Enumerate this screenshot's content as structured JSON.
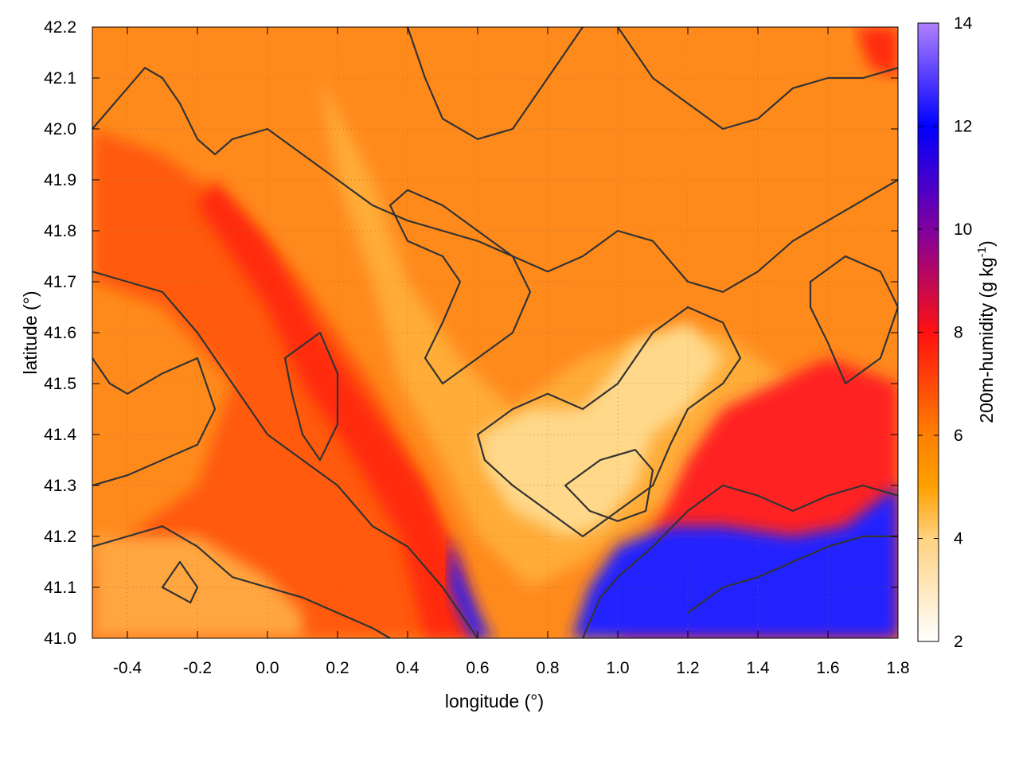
{
  "chart_data": {
    "type": "heatmap",
    "title": "",
    "xlabel": "longitude (°)",
    "ylabel": "latitude (°)",
    "xlim": [
      -0.5,
      1.8
    ],
    "ylim": [
      41.0,
      42.2
    ],
    "xticks": [
      -0.4,
      -0.2,
      0.0,
      0.2,
      0.4,
      0.6,
      0.8,
      1.0,
      1.2,
      1.4,
      1.6,
      1.8
    ],
    "xtick_labels": [
      "-0.4",
      "-0.2",
      "0.0",
      "0.2",
      "0.4",
      "0.6",
      "0.8",
      "1.0",
      "1.2",
      "1.4",
      "1.6",
      "1.8"
    ],
    "yticks": [
      41.0,
      41.1,
      41.2,
      41.3,
      41.4,
      41.5,
      41.6,
      41.7,
      41.8,
      41.9,
      42.0,
      42.1,
      42.2
    ],
    "ytick_labels": [
      "41.0",
      "41.1",
      "41.2",
      "41.3",
      "41.4",
      "41.5",
      "41.6",
      "41.7",
      "41.8",
      "41.9",
      "42.0",
      "42.1",
      "42.2"
    ],
    "grid": true,
    "colorbar": {
      "label_main": "200m-humidity (g kg",
      "label_sup": "-1",
      "label_end": ")",
      "range": [
        2,
        14
      ],
      "ticks": [
        2,
        4,
        6,
        8,
        10,
        12,
        14
      ],
      "tick_labels": [
        "2",
        "4",
        "6",
        "8",
        "10",
        "12",
        "14"
      ],
      "stops": [
        {
          "value": 2,
          "color": "#ffffff"
        },
        {
          "value": 4,
          "color": "#ffd280"
        },
        {
          "value": 5,
          "color": "#ffa000"
        },
        {
          "value": 6,
          "color": "#ff8000"
        },
        {
          "value": 8,
          "color": "#ff1010"
        },
        {
          "value": 10,
          "color": "#8000a0"
        },
        {
          "value": 12,
          "color": "#0000ff"
        },
        {
          "value": 14,
          "color": "#b080ff"
        }
      ]
    },
    "humidity_regions": [
      {
        "level": 6.3,
        "color": "#ff8a1c",
        "poly": [
          [
            -0.5,
            42.2
          ],
          [
            1.8,
            42.2
          ],
          [
            1.8,
            41.0
          ],
          [
            -0.5,
            41.0
          ]
        ]
      },
      {
        "level": 7.0,
        "color": "#ff5a0a",
        "poly": [
          [
            -0.5,
            42.0
          ],
          [
            -0.3,
            41.95
          ],
          [
            -0.1,
            41.85
          ],
          [
            0.1,
            41.7
          ],
          [
            0.3,
            41.5
          ],
          [
            0.45,
            41.3
          ],
          [
            0.55,
            41.1
          ],
          [
            0.6,
            41.0
          ],
          [
            -0.5,
            41.0
          ],
          [
            -0.5,
            41.15
          ],
          [
            -0.2,
            41.3
          ],
          [
            -0.1,
            41.5
          ],
          [
            -0.3,
            41.65
          ],
          [
            -0.5,
            41.7
          ]
        ]
      },
      {
        "level": 5.5,
        "color": "#ffa640",
        "poly": [
          [
            -0.5,
            41.2
          ],
          [
            -0.2,
            41.2
          ],
          [
            0.0,
            41.12
          ],
          [
            0.1,
            41.05
          ],
          [
            0.1,
            41.0
          ],
          [
            -0.5,
            41.0
          ]
        ]
      },
      {
        "level": 7.8,
        "color": "#ff2a08",
        "poly": [
          [
            -0.15,
            41.9
          ],
          [
            0.0,
            41.78
          ],
          [
            0.15,
            41.6
          ],
          [
            0.3,
            41.45
          ],
          [
            0.45,
            41.3
          ],
          [
            0.55,
            41.15
          ],
          [
            0.6,
            41.0
          ],
          [
            0.45,
            41.0
          ],
          [
            0.38,
            41.2
          ],
          [
            0.25,
            41.35
          ],
          [
            0.1,
            41.5
          ],
          [
            0.0,
            41.65
          ],
          [
            -0.1,
            41.75
          ],
          [
            -0.2,
            41.85
          ]
        ]
      },
      {
        "level": 5.2,
        "color": "#ffac38",
        "poly": [
          [
            0.15,
            42.1
          ],
          [
            0.3,
            41.9
          ],
          [
            0.4,
            41.7
          ],
          [
            0.55,
            41.55
          ],
          [
            0.7,
            41.45
          ],
          [
            0.8,
            41.5
          ],
          [
            0.9,
            41.55
          ],
          [
            1.1,
            41.6
          ],
          [
            1.3,
            41.6
          ],
          [
            1.5,
            41.5
          ],
          [
            1.6,
            41.45
          ],
          [
            1.5,
            41.35
          ],
          [
            1.3,
            41.3
          ],
          [
            1.1,
            41.25
          ],
          [
            0.9,
            41.15
          ],
          [
            0.75,
            41.1
          ],
          [
            0.6,
            41.2
          ],
          [
            0.5,
            41.35
          ],
          [
            0.38,
            41.5
          ],
          [
            0.3,
            41.7
          ],
          [
            0.2,
            41.9
          ]
        ]
      },
      {
        "level": 3.5,
        "color": "#ffd88a",
        "poly": [
          [
            0.6,
            41.4
          ],
          [
            0.75,
            41.45
          ],
          [
            0.9,
            41.45
          ],
          [
            1.05,
            41.58
          ],
          [
            1.2,
            41.62
          ],
          [
            1.3,
            41.55
          ],
          [
            1.2,
            41.45
          ],
          [
            1.1,
            41.4
          ],
          [
            1.05,
            41.3
          ],
          [
            0.95,
            41.22
          ],
          [
            0.85,
            41.2
          ],
          [
            0.7,
            41.25
          ],
          [
            0.62,
            41.33
          ]
        ]
      },
      {
        "level": 8.0,
        "color": "#ff2020",
        "poly": [
          [
            1.0,
            41.0
          ],
          [
            1.1,
            41.2
          ],
          [
            1.2,
            41.35
          ],
          [
            1.3,
            41.45
          ],
          [
            1.45,
            41.5
          ],
          [
            1.6,
            41.55
          ],
          [
            1.8,
            41.5
          ],
          [
            1.8,
            41.0
          ]
        ]
      },
      {
        "level": 12.0,
        "color": "#2020ff",
        "poly": [
          [
            0.87,
            41.0
          ],
          [
            0.92,
            41.1
          ],
          [
            1.0,
            41.18
          ],
          [
            1.15,
            41.22
          ],
          [
            1.3,
            41.22
          ],
          [
            1.5,
            41.2
          ],
          [
            1.65,
            41.22
          ],
          [
            1.8,
            41.3
          ],
          [
            1.8,
            41.0
          ]
        ]
      },
      {
        "level": 12.0,
        "color": "#2020ff",
        "poly": [
          [
            0.52,
            41.2
          ],
          [
            0.57,
            41.1
          ],
          [
            0.62,
            41.02
          ],
          [
            0.65,
            41.0
          ],
          [
            0.58,
            41.0
          ],
          [
            0.52,
            41.1
          ]
        ]
      },
      {
        "level": 8.0,
        "color": "#ff2a10",
        "poly": [
          [
            1.68,
            42.2
          ],
          [
            1.8,
            42.2
          ],
          [
            1.8,
            42.1
          ],
          [
            1.72,
            42.12
          ]
        ]
      }
    ],
    "contours": [
      [
        [
          -0.5,
          42.0
        ],
        [
          -0.4,
          42.08
        ],
        [
          -0.35,
          42.12
        ],
        [
          -0.3,
          42.1
        ],
        [
          -0.25,
          42.05
        ],
        [
          -0.2,
          41.98
        ],
        [
          -0.15,
          41.95
        ],
        [
          -0.1,
          41.98
        ],
        [
          0.0,
          42.0
        ],
        [
          0.1,
          41.95
        ],
        [
          0.2,
          41.9
        ],
        [
          0.3,
          41.85
        ],
        [
          0.4,
          41.82
        ],
        [
          0.5,
          41.8
        ],
        [
          0.6,
          41.78
        ],
        [
          0.7,
          41.75
        ],
        [
          0.8,
          41.72
        ],
        [
          0.9,
          41.75
        ],
        [
          1.0,
          41.8
        ],
        [
          1.1,
          41.78
        ],
        [
          1.2,
          41.7
        ],
        [
          1.3,
          41.68
        ],
        [
          1.4,
          41.72
        ],
        [
          1.5,
          41.78
        ],
        [
          1.6,
          41.82
        ],
        [
          1.7,
          41.86
        ],
        [
          1.8,
          41.9
        ]
      ],
      [
        [
          -0.5,
          41.72
        ],
        [
          -0.4,
          41.7
        ],
        [
          -0.3,
          41.68
        ],
        [
          -0.2,
          41.6
        ],
        [
          -0.1,
          41.5
        ],
        [
          0.0,
          41.4
        ],
        [
          0.1,
          41.35
        ],
        [
          0.2,
          41.3
        ],
        [
          0.3,
          41.22
        ],
        [
          0.4,
          41.18
        ],
        [
          0.5,
          41.1
        ],
        [
          0.55,
          41.05
        ],
        [
          0.6,
          41.0
        ]
      ],
      [
        [
          -0.5,
          41.55
        ],
        [
          -0.45,
          41.5
        ],
        [
          -0.4,
          41.48
        ],
        [
          -0.3,
          41.52
        ],
        [
          -0.2,
          41.55
        ],
        [
          -0.15,
          41.45
        ],
        [
          -0.2,
          41.38
        ],
        [
          -0.3,
          41.35
        ],
        [
          -0.4,
          41.32
        ],
        [
          -0.5,
          41.3
        ]
      ],
      [
        [
          -0.5,
          41.18
        ],
        [
          -0.4,
          41.2
        ],
        [
          -0.3,
          41.22
        ],
        [
          -0.2,
          41.18
        ],
        [
          -0.1,
          41.12
        ],
        [
          0.0,
          41.1
        ],
        [
          0.1,
          41.08
        ],
        [
          0.2,
          41.05
        ],
        [
          0.3,
          41.02
        ],
        [
          0.35,
          41.0
        ]
      ],
      [
        [
          0.6,
          41.4
        ],
        [
          0.7,
          41.45
        ],
        [
          0.8,
          41.48
        ],
        [
          0.9,
          41.45
        ],
        [
          1.0,
          41.5
        ],
        [
          1.1,
          41.6
        ],
        [
          1.2,
          41.65
        ],
        [
          1.3,
          41.62
        ],
        [
          1.35,
          41.55
        ],
        [
          1.3,
          41.5
        ],
        [
          1.2,
          41.45
        ],
        [
          1.15,
          41.38
        ],
        [
          1.1,
          41.3
        ],
        [
          1.0,
          41.25
        ],
        [
          0.9,
          41.2
        ],
        [
          0.8,
          41.25
        ],
        [
          0.7,
          41.3
        ],
        [
          0.62,
          41.35
        ],
        [
          0.6,
          41.4
        ]
      ],
      [
        [
          0.85,
          41.3
        ],
        [
          0.95,
          41.35
        ],
        [
          1.05,
          41.37
        ],
        [
          1.1,
          41.33
        ],
        [
          1.08,
          41.25
        ],
        [
          1.0,
          41.23
        ],
        [
          0.92,
          41.25
        ],
        [
          0.85,
          41.3
        ]
      ],
      [
        [
          0.9,
          41.0
        ],
        [
          0.95,
          41.08
        ],
        [
          1.0,
          41.12
        ],
        [
          1.1,
          41.18
        ],
        [
          1.2,
          41.25
        ],
        [
          1.3,
          41.3
        ],
        [
          1.4,
          41.28
        ],
        [
          1.5,
          41.25
        ],
        [
          1.6,
          41.28
        ],
        [
          1.7,
          41.3
        ],
        [
          1.8,
          41.28
        ]
      ],
      [
        [
          1.2,
          41.05
        ],
        [
          1.3,
          41.1
        ],
        [
          1.4,
          41.12
        ],
        [
          1.5,
          41.15
        ],
        [
          1.6,
          41.18
        ],
        [
          1.7,
          41.2
        ],
        [
          1.8,
          41.2
        ]
      ],
      [
        [
          0.4,
          42.2
        ],
        [
          0.45,
          42.1
        ],
        [
          0.5,
          42.02
        ],
        [
          0.6,
          41.98
        ],
        [
          0.7,
          42.0
        ],
        [
          0.75,
          42.05
        ],
        [
          0.8,
          42.1
        ],
        [
          0.85,
          42.15
        ],
        [
          0.9,
          42.2
        ]
      ],
      [
        [
          1.0,
          42.2
        ],
        [
          1.1,
          42.1
        ],
        [
          1.2,
          42.05
        ],
        [
          1.3,
          42.0
        ],
        [
          1.4,
          42.02
        ],
        [
          1.5,
          42.08
        ],
        [
          1.6,
          42.1
        ],
        [
          1.7,
          42.1
        ],
        [
          1.8,
          42.12
        ]
      ],
      [
        [
          -0.3,
          41.1
        ],
        [
          -0.25,
          41.15
        ],
        [
          -0.2,
          41.1
        ],
        [
          -0.22,
          41.07
        ],
        [
          -0.3,
          41.1
        ]
      ],
      [
        [
          0.35,
          41.85
        ],
        [
          0.4,
          41.78
        ],
        [
          0.5,
          41.75
        ],
        [
          0.55,
          41.7
        ],
        [
          0.5,
          41.62
        ],
        [
          0.45,
          41.55
        ],
        [
          0.5,
          41.5
        ],
        [
          0.6,
          41.55
        ],
        [
          0.7,
          41.6
        ],
        [
          0.75,
          41.68
        ],
        [
          0.7,
          41.75
        ],
        [
          0.6,
          41.8
        ],
        [
          0.5,
          41.85
        ],
        [
          0.4,
          41.88
        ],
        [
          0.35,
          41.85
        ]
      ],
      [
        [
          1.55,
          41.7
        ],
        [
          1.65,
          41.75
        ],
        [
          1.75,
          41.72
        ],
        [
          1.8,
          41.65
        ],
        [
          1.75,
          41.55
        ],
        [
          1.65,
          41.5
        ],
        [
          1.6,
          41.58
        ],
        [
          1.55,
          41.65
        ],
        [
          1.55,
          41.7
        ]
      ],
      [
        [
          0.05,
          41.55
        ],
        [
          0.15,
          41.6
        ],
        [
          0.2,
          41.52
        ],
        [
          0.2,
          41.42
        ],
        [
          0.15,
          41.35
        ],
        [
          0.1,
          41.4
        ],
        [
          0.07,
          41.48
        ],
        [
          0.05,
          41.55
        ]
      ]
    ]
  }
}
